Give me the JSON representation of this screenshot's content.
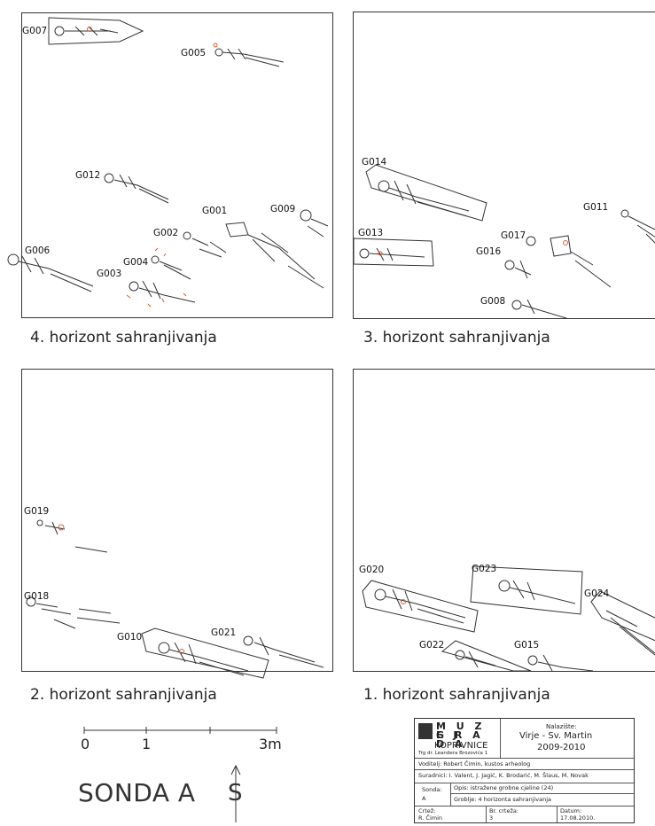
{
  "panels": [
    {
      "caption": "4. horizont sahranjivanja",
      "graves": [
        "G007",
        "G005",
        "G012",
        "G001",
        "G009",
        "G002",
        "G004",
        "G003",
        "G006"
      ]
    },
    {
      "caption": "3. horizont sahranjivanja",
      "graves": [
        "G014",
        "G011",
        "G013",
        "G017",
        "G016",
        "G008"
      ]
    },
    {
      "caption": "2. horizont sahranjivanja",
      "graves": [
        "G019",
        "G018",
        "G010",
        "G021"
      ]
    },
    {
      "caption": "1. horizont sahranjivanja",
      "graves": [
        "G020",
        "G023",
        "G024",
        "G022",
        "G015"
      ]
    }
  ],
  "scale": {
    "labels": [
      "0",
      "1",
      "3m"
    ]
  },
  "sonda": "SONDA A",
  "north_symbol": "S",
  "title_block": {
    "museum": {
      "line1": "M U Z E J",
      "line2": "G R A D A",
      "line3": "KOPRIVNICE",
      "address": "Trg dr. Leandera Brozovića 1"
    },
    "site_label": "Nalazište:",
    "site_name": "Virje - Sv. Martin",
    "site_years": "2009-2010",
    "leader": "Voditelj: Robert Čimin, kustos arheolog",
    "collaborators": "Suradnici: I. Valent, J. Jagić, K. Brodarić, M. Šlaus, M. Novak",
    "sonda_label": "Sonda:",
    "sonda_value": "A",
    "opis": "Opis: istražene grobne cjeline (24)",
    "groblje": "Groblje: 4 horizonta sahranjivanja",
    "crtez_label": "Crtež:",
    "crtez_value": "R. Čimin",
    "br_label": "Br. crteža:",
    "br_value": "3",
    "datum_label": "Datum:",
    "datum_value": "17.08.2010."
  },
  "colors": {
    "ink": "#333333",
    "find_marker": "#e05a2a"
  }
}
